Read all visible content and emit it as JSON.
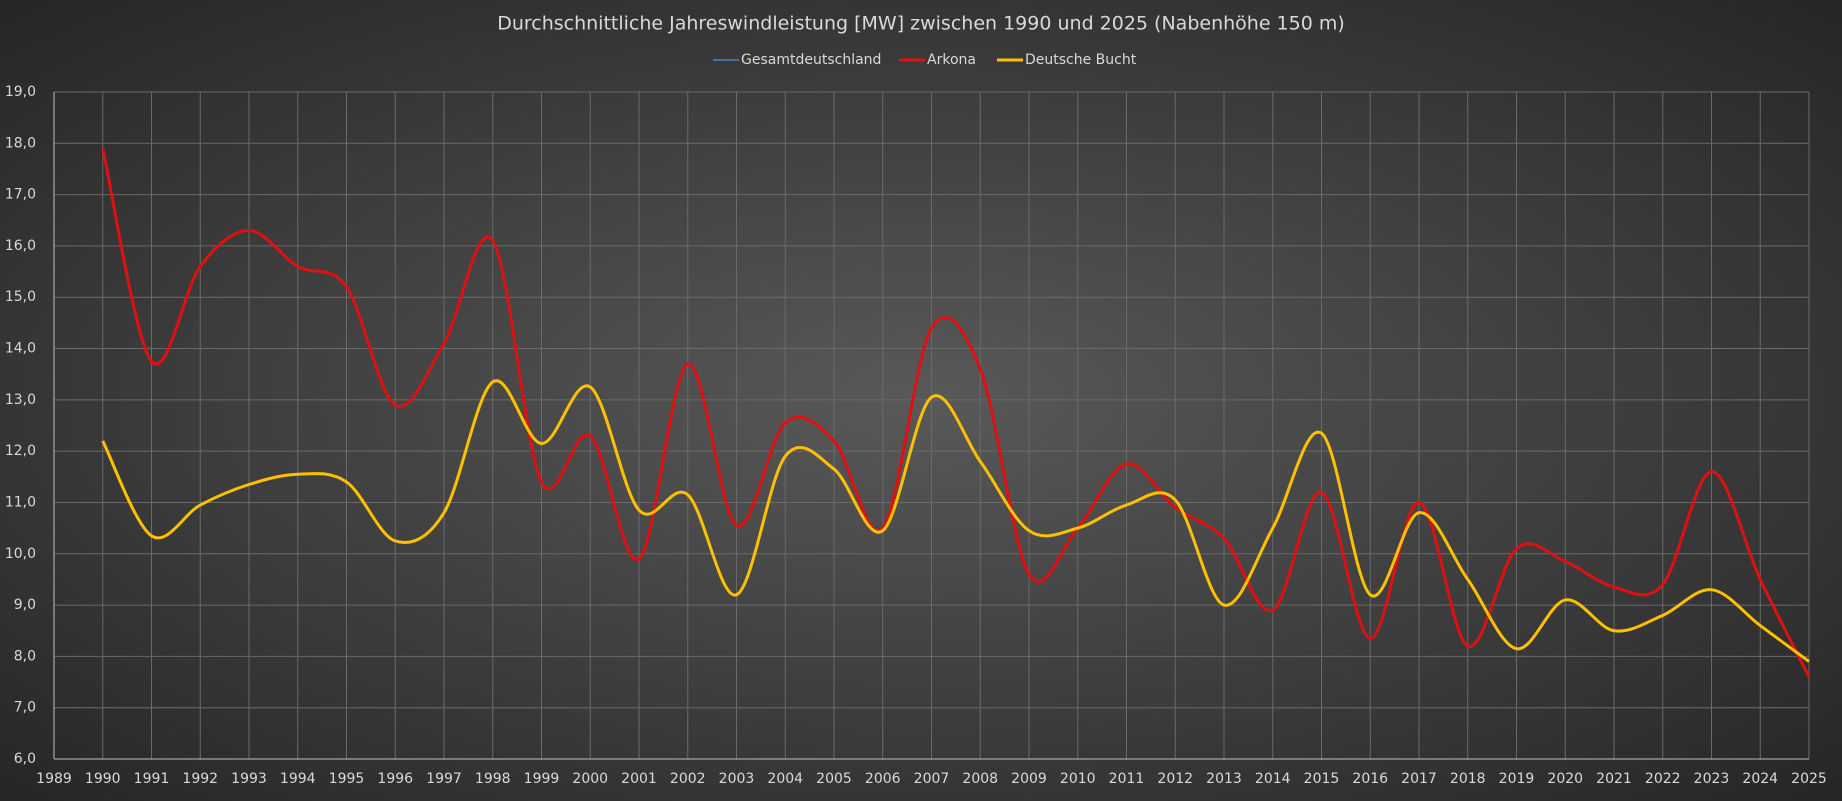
{
  "chart_data": {
    "type": "line",
    "title": "Durchschnittliche Jahreswindleistung [MW] zwischen 1990 und 2025 (Nabenhöhe 150 m)",
    "x": [
      1990,
      1991,
      1992,
      1993,
      1994,
      1995,
      1996,
      1997,
      1998,
      1999,
      2000,
      2001,
      2002,
      2003,
      2004,
      2005,
      2006,
      2007,
      2008,
      2009,
      2010,
      2011,
      2012,
      2013,
      2014,
      2015,
      2016,
      2017,
      2018,
      2019,
      2020,
      2021,
      2022,
      2023,
      2024,
      2025
    ],
    "series": [
      {
        "name": "Gesamtdeutschland",
        "color": "#4f7fbf",
        "values": [
          null,
          null,
          null,
          null,
          null,
          null,
          null,
          null,
          null,
          null,
          null,
          null,
          null,
          null,
          null,
          null,
          null,
          null,
          null,
          null,
          null,
          null,
          null,
          null,
          null,
          null,
          null,
          null,
          null,
          null,
          null,
          null,
          null,
          null,
          null,
          null
        ]
      },
      {
        "name": "Arkona",
        "color": "#e01010",
        "values": [
          17.9,
          13.75,
          15.6,
          16.3,
          15.6,
          15.2,
          12.9,
          14.1,
          16.1,
          11.4,
          12.3,
          9.9,
          13.7,
          10.55,
          12.55,
          12.2,
          10.5,
          14.4,
          13.6,
          9.6,
          10.5,
          11.75,
          10.9,
          10.3,
          8.9,
          11.2,
          8.35,
          11.0,
          8.2,
          10.1,
          9.85,
          9.35,
          9.4,
          11.6,
          9.5,
          7.6
        ]
      },
      {
        "name": "Deutsche Bucht",
        "color": "#ffc000",
        "values": [
          12.2,
          10.35,
          10.95,
          11.35,
          11.55,
          11.4,
          10.25,
          10.8,
          13.35,
          12.15,
          13.25,
          10.85,
          11.15,
          9.2,
          11.9,
          11.65,
          10.45,
          13.05,
          11.8,
          10.45,
          10.5,
          10.95,
          11.05,
          9.0,
          10.5,
          12.35,
          9.2,
          10.8,
          9.5,
          8.15,
          9.1,
          8.5,
          8.8,
          9.3,
          8.6,
          7.9
        ]
      }
    ],
    "xlim": [
      1989,
      2025
    ],
    "xticks": [
      1989,
      1990,
      1991,
      1992,
      1993,
      1994,
      1995,
      1996,
      1997,
      1998,
      1999,
      2000,
      2001,
      2002,
      2003,
      2004,
      2005,
      2006,
      2007,
      2008,
      2009,
      2010,
      2011,
      2012,
      2013,
      2014,
      2015,
      2016,
      2017,
      2018,
      2019,
      2020,
      2021,
      2022,
      2023,
      2024,
      2025
    ],
    "ylim": [
      6,
      19
    ],
    "yticks": [
      {
        "value": 6,
        "label": "6,0"
      },
      {
        "value": 7,
        "label": "7,0"
      },
      {
        "value": 8,
        "label": "8,0"
      },
      {
        "value": 9,
        "label": "9,0"
      },
      {
        "value": 10,
        "label": "10,0"
      },
      {
        "value": 11,
        "label": "11,0"
      },
      {
        "value": 12,
        "label": "12,0"
      },
      {
        "value": 13,
        "label": "13,0"
      },
      {
        "value": 14,
        "label": "14,0"
      },
      {
        "value": 15,
        "label": "15,0"
      },
      {
        "value": 16,
        "label": "16,0"
      },
      {
        "value": 17,
        "label": "17,0"
      },
      {
        "value": 18,
        "label": "18,0"
      },
      {
        "value": 19,
        "label": "19,0"
      }
    ],
    "grid": true,
    "legend": "top"
  }
}
